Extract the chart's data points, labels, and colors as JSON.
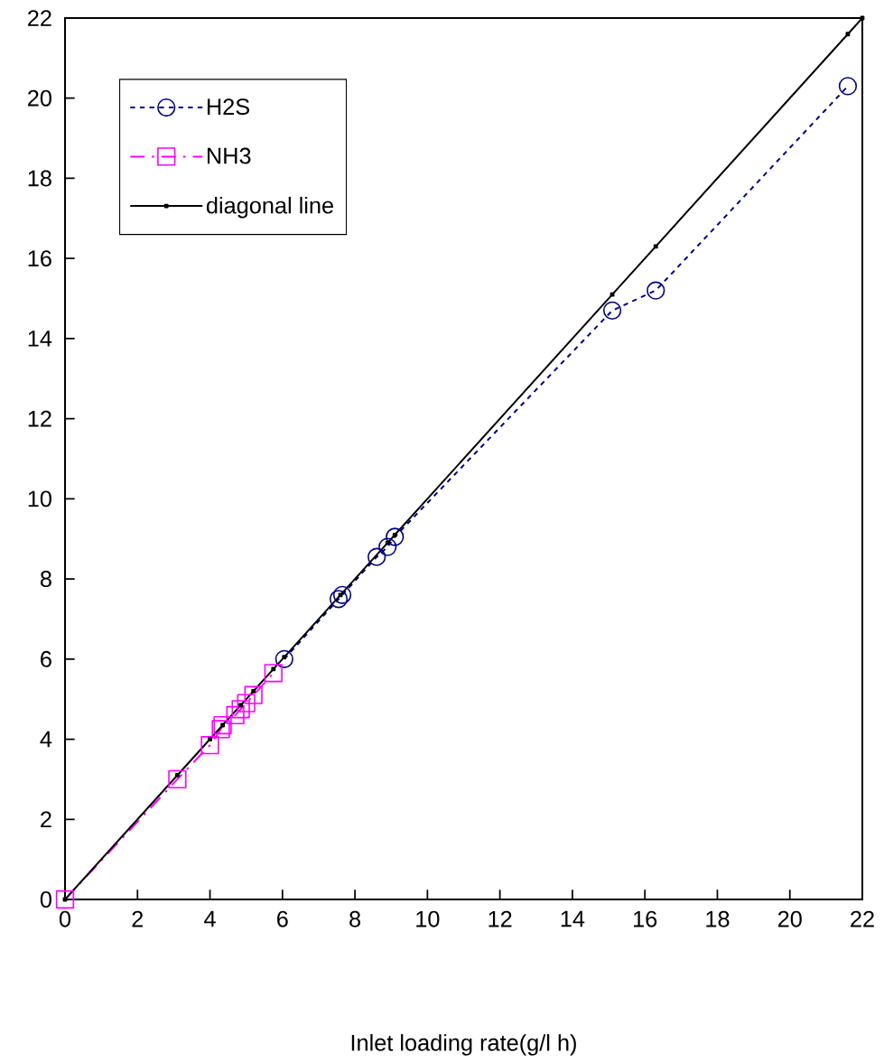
{
  "chart_data": {
    "type": "line",
    "xlabel": "Inlet loading rate(g/l h)",
    "xlim": [
      0,
      22
    ],
    "ylim": [
      0,
      22
    ],
    "xticks": [
      0,
      2,
      4,
      6,
      8,
      10,
      12,
      14,
      16,
      18,
      20,
      22
    ],
    "yticks": [
      0,
      2,
      4,
      6,
      8,
      10,
      12,
      14,
      16,
      18,
      20,
      22
    ],
    "grid": false,
    "legend": "top left",
    "series": [
      {
        "name": "H2S",
        "color": "#000080",
        "marker": "circle",
        "line_style": "dotted",
        "x": [
          6.05,
          7.55,
          7.65,
          8.6,
          8.9,
          9.1,
          15.1,
          16.3,
          21.6
        ],
        "values": [
          6.0,
          7.5,
          7.6,
          8.55,
          8.8,
          9.05,
          14.7,
          15.2,
          20.3
        ]
      },
      {
        "name": "NH3",
        "color": "#ff00ff",
        "marker": "square",
        "line_style": "dashed",
        "x": [
          0,
          3.1,
          4.0,
          4.3,
          4.35,
          4.7,
          4.85,
          5.0,
          5.2,
          5.75
        ],
        "values": [
          0,
          3.0,
          3.85,
          4.25,
          4.35,
          4.6,
          4.75,
          4.9,
          5.1,
          5.65
        ]
      },
      {
        "name": "diagonal line",
        "color": "#000000",
        "marker": "square",
        "line_style": "solid",
        "x": [
          0,
          3.1,
          4.0,
          4.35,
          4.85,
          5.2,
          5.75,
          6.05,
          7.6,
          8.9,
          9.1,
          15.1,
          16.3,
          21.6,
          22
        ],
        "values": [
          0,
          3.1,
          4.0,
          4.35,
          4.85,
          5.2,
          5.75,
          6.05,
          7.6,
          8.9,
          9.1,
          15.1,
          16.3,
          21.6,
          22
        ]
      }
    ]
  }
}
